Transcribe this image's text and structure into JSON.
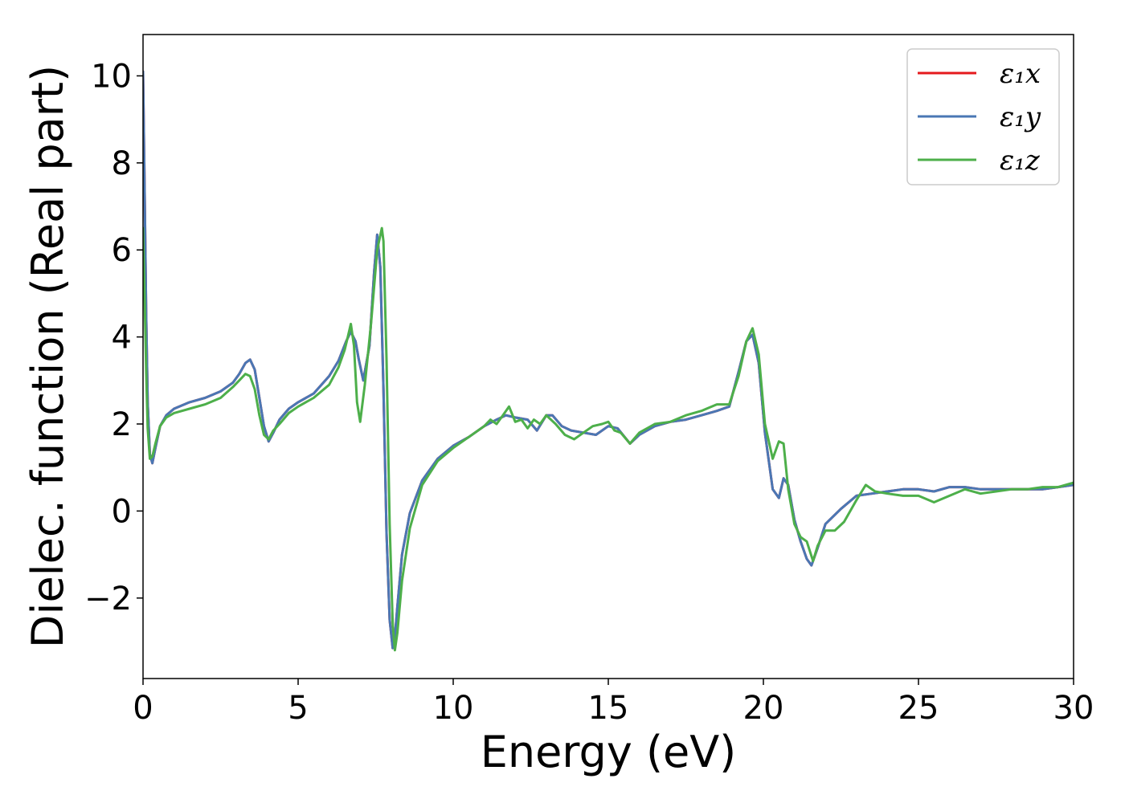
{
  "chart_data": {
    "type": "line",
    "title": "",
    "xlabel": "Energy (eV)",
    "ylabel": "Dielec. function (Real part)",
    "xlim": [
      0,
      30
    ],
    "ylim": [
      -3.85,
      10.95
    ],
    "xticks": [
      0,
      5,
      10,
      15,
      20,
      25,
      30
    ],
    "xtick_labels": [
      "0",
      "5",
      "10",
      "15",
      "20",
      "25",
      "30"
    ],
    "yticks": [
      -2,
      0,
      2,
      4,
      6,
      8,
      10
    ],
    "ytick_labels": [
      "−2",
      "0",
      "2",
      "4",
      "6",
      "8",
      "10"
    ],
    "grid": false,
    "legend_position": "top-right",
    "series": [
      {
        "name": "ε₁x",
        "color": "#e41a1c",
        "x": [
          0,
          0.05,
          0.1,
          0.15,
          0.22,
          0.3,
          0.4,
          0.55,
          0.75,
          1.0,
          1.5,
          2.0,
          2.5,
          2.9,
          3.1,
          3.3,
          3.45,
          3.6,
          3.75,
          3.9,
          4.05,
          4.2,
          4.4,
          4.7,
          5.0,
          5.5,
          6.0,
          6.3,
          6.55,
          6.7,
          6.85,
          6.95,
          7.1,
          7.3,
          7.45,
          7.55,
          7.65,
          7.75,
          7.85,
          7.95,
          8.05,
          8.12,
          8.2,
          8.35,
          8.6,
          9.0,
          9.5,
          10.0,
          10.5,
          11.0,
          11.4,
          11.7,
          12.0,
          12.4,
          12.7,
          13.0,
          13.2,
          13.5,
          13.8,
          14.2,
          14.6,
          15.0,
          15.3,
          15.7,
          16.0,
          16.5,
          17.0,
          17.5,
          18.0,
          18.5,
          18.9,
          19.2,
          19.45,
          19.65,
          19.85,
          20.05,
          20.3,
          20.5,
          20.65,
          20.8,
          21.0,
          21.2,
          21.4,
          21.55,
          21.75,
          22.0,
          22.5,
          23.0,
          23.5,
          24.0,
          24.5,
          25.0,
          25.5,
          26.0,
          26.5,
          27.0,
          27.5,
          28.0,
          28.5,
          29.0,
          29.5,
          30.0
        ],
        "y": [
          10.1,
          7.5,
          4.5,
          2.5,
          1.3,
          1.1,
          1.45,
          1.95,
          2.2,
          2.35,
          2.5,
          2.6,
          2.75,
          2.95,
          3.15,
          3.4,
          3.48,
          3.25,
          2.6,
          1.95,
          1.6,
          1.8,
          2.1,
          2.35,
          2.5,
          2.7,
          3.1,
          3.45,
          3.9,
          4.12,
          3.9,
          3.5,
          3.0,
          3.8,
          5.5,
          6.35,
          5.6,
          2.8,
          -0.5,
          -2.5,
          -3.15,
          -2.9,
          -2.2,
          -1.0,
          -0.05,
          0.7,
          1.2,
          1.5,
          1.7,
          1.95,
          2.1,
          2.2,
          2.15,
          2.1,
          1.85,
          2.2,
          2.2,
          1.95,
          1.85,
          1.8,
          1.75,
          1.95,
          1.9,
          1.55,
          1.75,
          1.95,
          2.05,
          2.1,
          2.2,
          2.3,
          2.4,
          3.2,
          3.9,
          4.05,
          3.4,
          1.8,
          0.5,
          0.3,
          0.75,
          0.6,
          -0.2,
          -0.7,
          -1.1,
          -1.25,
          -0.85,
          -0.3,
          0.05,
          0.35,
          0.4,
          0.45,
          0.5,
          0.5,
          0.45,
          0.55,
          0.55,
          0.5,
          0.5,
          0.5,
          0.5,
          0.5,
          0.55,
          0.6
        ]
      },
      {
        "name": "ε₁y",
        "color": "#4a77b4",
        "x": [
          0,
          0.05,
          0.1,
          0.15,
          0.22,
          0.3,
          0.4,
          0.55,
          0.75,
          1.0,
          1.5,
          2.0,
          2.5,
          2.9,
          3.1,
          3.3,
          3.45,
          3.6,
          3.75,
          3.9,
          4.05,
          4.2,
          4.4,
          4.7,
          5.0,
          5.5,
          6.0,
          6.3,
          6.55,
          6.7,
          6.85,
          6.95,
          7.1,
          7.3,
          7.45,
          7.55,
          7.65,
          7.75,
          7.85,
          7.95,
          8.05,
          8.12,
          8.2,
          8.35,
          8.6,
          9.0,
          9.5,
          10.0,
          10.5,
          11.0,
          11.4,
          11.7,
          12.0,
          12.4,
          12.7,
          13.0,
          13.2,
          13.5,
          13.8,
          14.2,
          14.6,
          15.0,
          15.3,
          15.7,
          16.0,
          16.5,
          17.0,
          17.5,
          18.0,
          18.5,
          18.9,
          19.2,
          19.45,
          19.65,
          19.85,
          20.05,
          20.3,
          20.5,
          20.65,
          20.8,
          21.0,
          21.2,
          21.4,
          21.55,
          21.75,
          22.0,
          22.5,
          23.0,
          23.5,
          24.0,
          24.5,
          25.0,
          25.5,
          26.0,
          26.5,
          27.0,
          27.5,
          28.0,
          28.5,
          29.0,
          29.5,
          30.0
        ],
        "y": [
          10.1,
          7.5,
          4.5,
          2.5,
          1.3,
          1.1,
          1.45,
          1.95,
          2.2,
          2.35,
          2.5,
          2.6,
          2.75,
          2.95,
          3.15,
          3.4,
          3.48,
          3.25,
          2.6,
          1.95,
          1.6,
          1.8,
          2.1,
          2.35,
          2.5,
          2.7,
          3.1,
          3.45,
          3.9,
          4.12,
          3.9,
          3.5,
          3.0,
          3.8,
          5.5,
          6.35,
          5.6,
          2.8,
          -0.5,
          -2.5,
          -3.15,
          -2.9,
          -2.2,
          -1.0,
          -0.05,
          0.7,
          1.2,
          1.5,
          1.7,
          1.95,
          2.1,
          2.2,
          2.15,
          2.1,
          1.85,
          2.2,
          2.2,
          1.95,
          1.85,
          1.8,
          1.75,
          1.95,
          1.9,
          1.55,
          1.75,
          1.95,
          2.05,
          2.1,
          2.2,
          2.3,
          2.4,
          3.2,
          3.9,
          4.05,
          3.4,
          1.8,
          0.5,
          0.3,
          0.75,
          0.6,
          -0.2,
          -0.7,
          -1.1,
          -1.25,
          -0.85,
          -0.3,
          0.05,
          0.35,
          0.4,
          0.45,
          0.5,
          0.5,
          0.45,
          0.55,
          0.55,
          0.5,
          0.5,
          0.5,
          0.5,
          0.5,
          0.55,
          0.6
        ]
      },
      {
        "name": "ε₁z",
        "color": "#4daf4a",
        "x": [
          0,
          0.05,
          0.1,
          0.15,
          0.22,
          0.3,
          0.4,
          0.55,
          0.75,
          1.0,
          1.5,
          2.0,
          2.5,
          2.9,
          3.1,
          3.3,
          3.45,
          3.6,
          3.75,
          3.9,
          4.05,
          4.2,
          4.4,
          4.7,
          5.0,
          5.5,
          6.0,
          6.3,
          6.5,
          6.6,
          6.7,
          6.8,
          6.9,
          7.0,
          7.15,
          7.35,
          7.55,
          7.7,
          7.75,
          7.85,
          7.95,
          8.05,
          8.12,
          8.2,
          8.35,
          8.6,
          9.0,
          9.5,
          10.0,
          10.5,
          11.0,
          11.2,
          11.4,
          11.6,
          11.8,
          12.0,
          12.2,
          12.4,
          12.6,
          12.8,
          13.0,
          13.3,
          13.6,
          13.9,
          14.2,
          14.5,
          14.8,
          15.0,
          15.2,
          15.4,
          15.7,
          16.0,
          16.5,
          17.0,
          17.5,
          18.0,
          18.5,
          18.9,
          19.2,
          19.45,
          19.65,
          19.85,
          20.05,
          20.3,
          20.5,
          20.65,
          20.8,
          21.0,
          21.2,
          21.4,
          21.6,
          21.75,
          22.0,
          22.3,
          22.6,
          23.0,
          23.3,
          23.6,
          24.0,
          24.5,
          25.0,
          25.5,
          26.0,
          26.5,
          27.0,
          27.5,
          28.0,
          28.5,
          29.0,
          29.5,
          30.0
        ],
        "y": [
          6.5,
          5.0,
          3.2,
          1.9,
          1.2,
          1.25,
          1.55,
          1.95,
          2.15,
          2.25,
          2.35,
          2.45,
          2.6,
          2.85,
          3.0,
          3.15,
          3.1,
          2.8,
          2.2,
          1.75,
          1.65,
          1.85,
          2.0,
          2.25,
          2.4,
          2.6,
          2.9,
          3.3,
          3.7,
          4.0,
          4.3,
          3.8,
          2.5,
          2.05,
          2.9,
          4.3,
          6.0,
          6.5,
          6.2,
          3.5,
          -0.3,
          -2.6,
          -3.2,
          -2.8,
          -1.6,
          -0.4,
          0.6,
          1.15,
          1.45,
          1.7,
          1.95,
          2.1,
          2.0,
          2.2,
          2.4,
          2.05,
          2.1,
          1.9,
          2.1,
          2.0,
          2.2,
          2.0,
          1.75,
          1.65,
          1.8,
          1.95,
          2.0,
          2.05,
          1.85,
          1.8,
          1.55,
          1.8,
          2.0,
          2.05,
          2.2,
          2.3,
          2.45,
          2.45,
          3.1,
          3.9,
          4.2,
          3.6,
          2.0,
          1.2,
          1.6,
          1.55,
          0.5,
          -0.3,
          -0.6,
          -0.7,
          -1.15,
          -0.8,
          -0.45,
          -0.45,
          -0.25,
          0.25,
          0.6,
          0.45,
          0.4,
          0.35,
          0.35,
          0.2,
          0.35,
          0.5,
          0.4,
          0.45,
          0.5,
          0.5,
          0.55,
          0.55,
          0.65
        ]
      }
    ]
  }
}
